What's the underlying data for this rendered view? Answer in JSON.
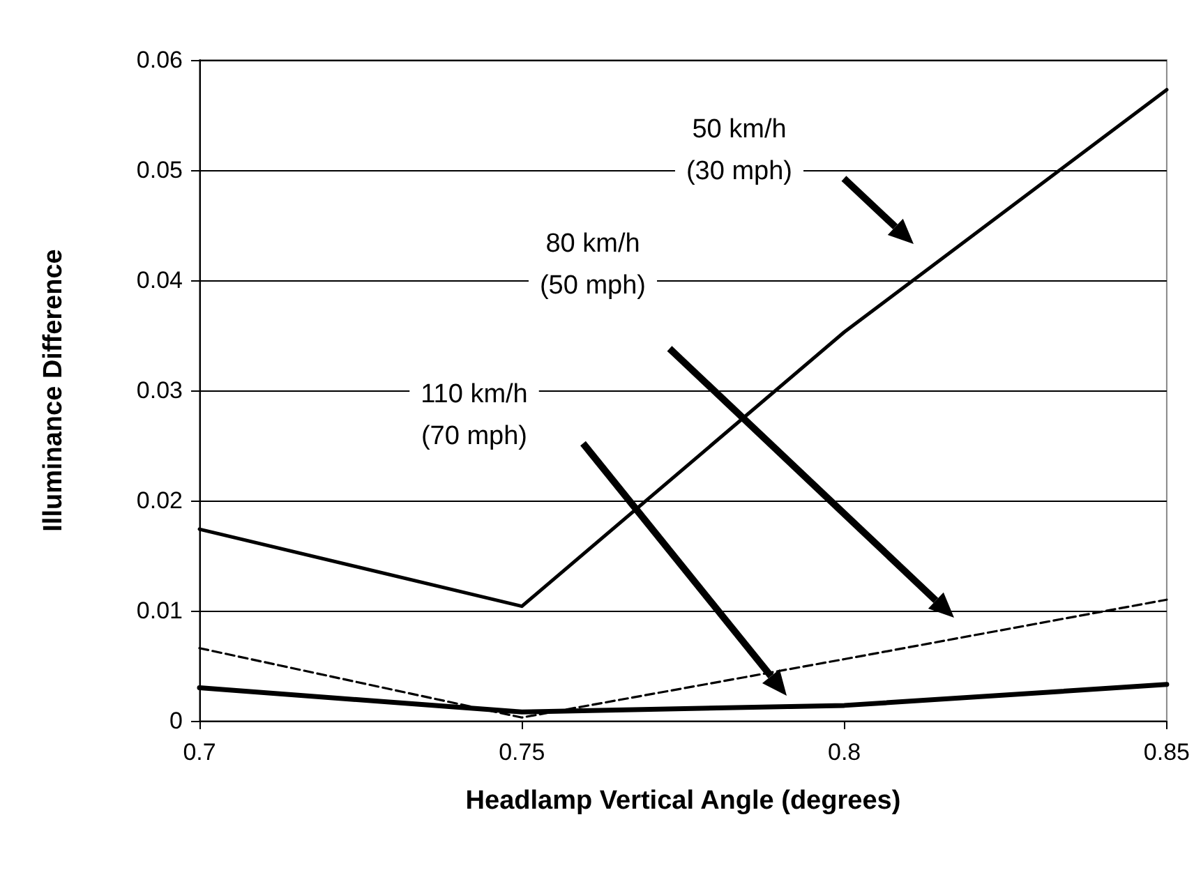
{
  "chart_data": {
    "type": "line",
    "xlabel": "Headlamp Vertical Angle (degrees)",
    "ylabel": "Illuminance Difference",
    "x": [
      0.7,
      0.75,
      0.8,
      0.85
    ],
    "series": [
      {
        "color": "#000000",
        "line_style": "solid",
        "values": [
          0.0174,
          0.0104,
          0.0353,
          0.0573
        ]
      },
      {
        "color": "#000000",
        "line_style": "dashed",
        "values": [
          0.0066,
          0.0003,
          0.0056,
          0.011
        ]
      },
      {
        "color": "#000000",
        "line_style": "solid",
        "values": [
          0.003,
          0.0008,
          0.0014,
          0.0033
        ]
      }
    ],
    "xlim": [
      0.7,
      0.85
    ],
    "xticks": [
      0.7,
      0.75,
      0.8,
      0.85
    ],
    "ylim": [
      0,
      0.06
    ],
    "yticks": [
      0,
      0.01,
      0.02,
      0.03,
      0.04,
      0.05,
      0.06
    ],
    "grid": "y",
    "marker": "none",
    "annotations": [
      "50 km/h\n(30 mph)",
      "80 km/h\n(50 mph)",
      "110 km/h\n(70 mph)"
    ]
  }
}
